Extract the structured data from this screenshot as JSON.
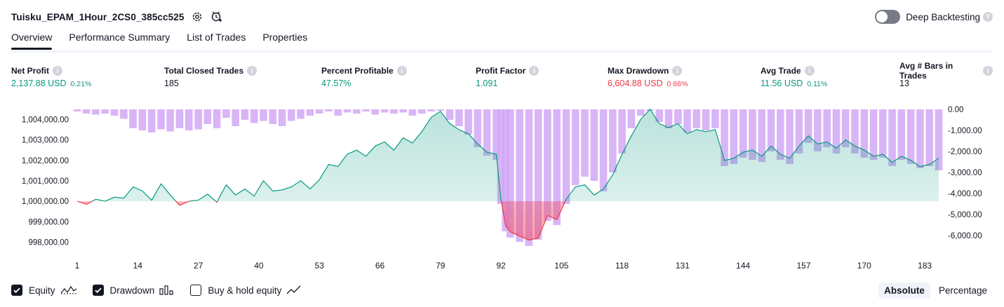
{
  "header": {
    "title": "Tuisku_EPAM_1Hour_2CS0_385cc525",
    "icons": [
      "gear-icon",
      "alarm-add-icon"
    ]
  },
  "deep_backtesting": {
    "label": "Deep Backtesting",
    "enabled": false
  },
  "tabs": [
    {
      "label": "Overview",
      "active": true
    },
    {
      "label": "Performance Summary",
      "active": false
    },
    {
      "label": "List of Trades",
      "active": false
    },
    {
      "label": "Properties",
      "active": false
    }
  ],
  "metrics": [
    {
      "label": "Net Profit",
      "value": "2,137.88 USD",
      "pct": "0.21%",
      "color": "green"
    },
    {
      "label": "Total Closed Trades",
      "value": "185",
      "pct": "",
      "color": ""
    },
    {
      "label": "Percent Profitable",
      "value": "47.57%",
      "pct": "",
      "color": "green"
    },
    {
      "label": "Profit Factor",
      "value": "1.091",
      "pct": "",
      "color": "green"
    },
    {
      "label": "Max Drawdown",
      "value": "6,604.88 USD",
      "pct": "0.66%",
      "color": "red"
    },
    {
      "label": "Avg Trade",
      "value": "11.56 USD",
      "pct": "0.11%",
      "color": "green"
    },
    {
      "label": "Avg # Bars in Trades",
      "value": "13",
      "pct": "",
      "color": ""
    }
  ],
  "chart_data": {
    "type": "area",
    "left_axis": {
      "ticks": [
        "1,004,000.00",
        "1,003,000.00",
        "1,002,000.00",
        "1,001,000.00",
        "1,000,000.00",
        "999,000.00",
        "998,000.00"
      ],
      "range": [
        997500,
        1004700
      ]
    },
    "right_axis": {
      "ticks": [
        "0.00",
        "-1,000.00",
        "-2,000.00",
        "-3,000.00",
        "-4,000.00",
        "-5,000.00",
        "-6,000.00"
      ],
      "range": [
        -6800,
        200
      ]
    },
    "x_ticks": [
      "1",
      "14",
      "27",
      "40",
      "53",
      "66",
      "79",
      "92",
      "105",
      "118",
      "131",
      "144",
      "157",
      "170",
      "183"
    ],
    "baseline": 1000000,
    "series": [
      {
        "name": "Equity",
        "x": [
          1,
          3,
          5,
          7,
          9,
          11,
          13,
          15,
          17,
          19,
          21,
          23,
          25,
          27,
          29,
          31,
          33,
          35,
          37,
          39,
          41,
          43,
          45,
          47,
          49,
          51,
          53,
          55,
          57,
          59,
          61,
          63,
          65,
          67,
          69,
          71,
          73,
          75,
          77,
          79,
          81,
          83,
          85,
          87,
          89,
          91,
          92,
          93,
          94,
          96,
          98,
          100,
          102,
          104,
          106,
          108,
          110,
          112,
          114,
          116,
          118,
          120,
          122,
          124,
          126,
          128,
          130,
          132,
          134,
          136,
          138,
          140,
          142,
          144,
          146,
          148,
          150,
          152,
          154,
          156,
          158,
          160,
          162,
          164,
          166,
          168,
          170,
          172,
          174,
          176,
          178,
          180,
          182,
          184,
          186
        ],
        "values": [
          1000000,
          999850,
          1000100,
          1000000,
          1000200,
          1000150,
          1000700,
          1000500,
          1000050,
          1000850,
          1000300,
          999800,
          1000000,
          1000050,
          1000350,
          999950,
          1000800,
          1000300,
          1000600,
          1000250,
          1001000,
          1000500,
          1000550,
          1000700,
          1001000,
          1000600,
          1001050,
          1001800,
          1001700,
          1002300,
          1002500,
          1002200,
          1002700,
          1002900,
          1002500,
          1003100,
          1002850,
          1003400,
          1004100,
          1004400,
          1003800,
          1003500,
          1003300,
          1002800,
          1002400,
          1002300,
          1000100,
          998800,
          998500,
          998300,
          998100,
          998200,
          999300,
          999100,
          1000100,
          1000700,
          1000800,
          1000300,
          1000600,
          1001300,
          1002300,
          1003200,
          1004000,
          1004500,
          1003800,
          1003600,
          1003800,
          1003300,
          1003500,
          1003400,
          1003500,
          1002000,
          1002100,
          1002400,
          1002500,
          1002200,
          1002700,
          1002300,
          1002100,
          1002700,
          1003200,
          1002800,
          1002900,
          1002600,
          1003000,
          1002700,
          1002500,
          1002200,
          1002300,
          1001900,
          1002200,
          1002000,
          1001700,
          1001800,
          1002100
        ]
      },
      {
        "name": "Drawdown",
        "x": [
          1,
          3,
          5,
          7,
          9,
          11,
          13,
          15,
          17,
          19,
          21,
          23,
          25,
          27,
          29,
          31,
          33,
          35,
          37,
          39,
          41,
          43,
          45,
          47,
          49,
          51,
          53,
          55,
          57,
          59,
          61,
          63,
          65,
          67,
          69,
          71,
          73,
          75,
          77,
          79,
          81,
          83,
          85,
          87,
          89,
          91,
          92,
          93,
          94,
          96,
          98,
          100,
          102,
          104,
          106,
          108,
          110,
          112,
          114,
          116,
          118,
          120,
          122,
          124,
          126,
          128,
          130,
          132,
          134,
          136,
          138,
          140,
          142,
          144,
          146,
          148,
          150,
          152,
          154,
          156,
          158,
          160,
          162,
          164,
          166,
          168,
          170,
          172,
          174,
          176,
          178,
          180,
          182,
          184,
          186
        ],
        "values": [
          -100,
          -200,
          -250,
          -200,
          -300,
          -450,
          -900,
          -1000,
          -1100,
          -950,
          -1050,
          -900,
          -1000,
          -950,
          -700,
          -900,
          -400,
          -800,
          -500,
          -650,
          -550,
          -700,
          -800,
          -550,
          -450,
          -300,
          -200,
          -100,
          -300,
          -150,
          -200,
          -100,
          -250,
          -150,
          -200,
          -150,
          -300,
          -200,
          -100,
          0,
          -500,
          -800,
          -1200,
          -1800,
          -2200,
          -2400,
          -4500,
          -5800,
          -6100,
          -6300,
          -6500,
          -6200,
          -5300,
          -5500,
          -4500,
          -3600,
          -3200,
          -3400,
          -3900,
          -3000,
          -2100,
          -900,
          -300,
          0,
          -600,
          -900,
          -700,
          -1100,
          -900,
          -1000,
          -900,
          -2700,
          -2600,
          -2300,
          -2400,
          -2500,
          -2000,
          -2400,
          -2600,
          -2100,
          -1600,
          -2000,
          -1800,
          -2100,
          -1800,
          -2100,
          -2300,
          -2400,
          -2300,
          -2700,
          -2400,
          -2600,
          -2800,
          -2700,
          -2900
        ]
      }
    ]
  },
  "legend": [
    {
      "label": "Equity",
      "checked": true,
      "icon": "equity-line-icon"
    },
    {
      "label": "Drawdown",
      "checked": true,
      "icon": "drawdown-bars-icon"
    },
    {
      "label": "Buy & hold equity",
      "checked": false,
      "icon": "buy-hold-line-icon"
    }
  ],
  "modes": [
    {
      "label": "Absolute",
      "active": true
    },
    {
      "label": "Percentage",
      "active": false
    }
  ]
}
